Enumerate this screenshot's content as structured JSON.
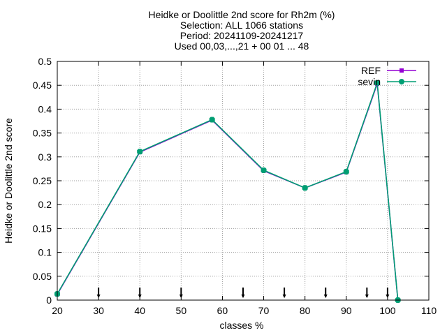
{
  "chart_data": {
    "type": "line",
    "title_lines": [
      "Heidke or Doolittle 2nd score  for Rh2m (%)",
      "Selection: ALL   1066 stations",
      "Period: 20241109-20241217",
      "Used 00,03,...,21 + 00 01 ... 48"
    ],
    "xlabel": "classes %",
    "ylabel": "Heidke or Doolittle 2nd score",
    "xlim": [
      20,
      110
    ],
    "ylim": [
      0,
      0.5
    ],
    "xticks": [
      20,
      30,
      40,
      50,
      60,
      70,
      80,
      90,
      100,
      110
    ],
    "yticks": [
      0,
      0.05,
      0.1,
      0.15,
      0.2,
      0.25,
      0.3,
      0.35,
      0.4,
      0.45,
      0.5
    ],
    "grid": true,
    "legend_position": "top-right",
    "series": [
      {
        "name": "REF",
        "color": "#9400d3",
        "x": [
          20,
          40,
          57.5,
          70,
          80,
          90,
          97.5,
          102.5
        ],
        "y": [
          0.012,
          0.31,
          0.377,
          0.271,
          0.235,
          0.268,
          0.453,
          0.0
        ]
      },
      {
        "name": "sevin",
        "color": "#009e73",
        "x": [
          20,
          40,
          57.5,
          70,
          80,
          90,
          97.5,
          102.5
        ],
        "y": [
          0.013,
          0.311,
          0.378,
          0.272,
          0.235,
          0.269,
          0.455,
          0.0
        ]
      }
    ],
    "class_boundary_markers": [
      30,
      40,
      50,
      65,
      75,
      85,
      95,
      100
    ]
  }
}
